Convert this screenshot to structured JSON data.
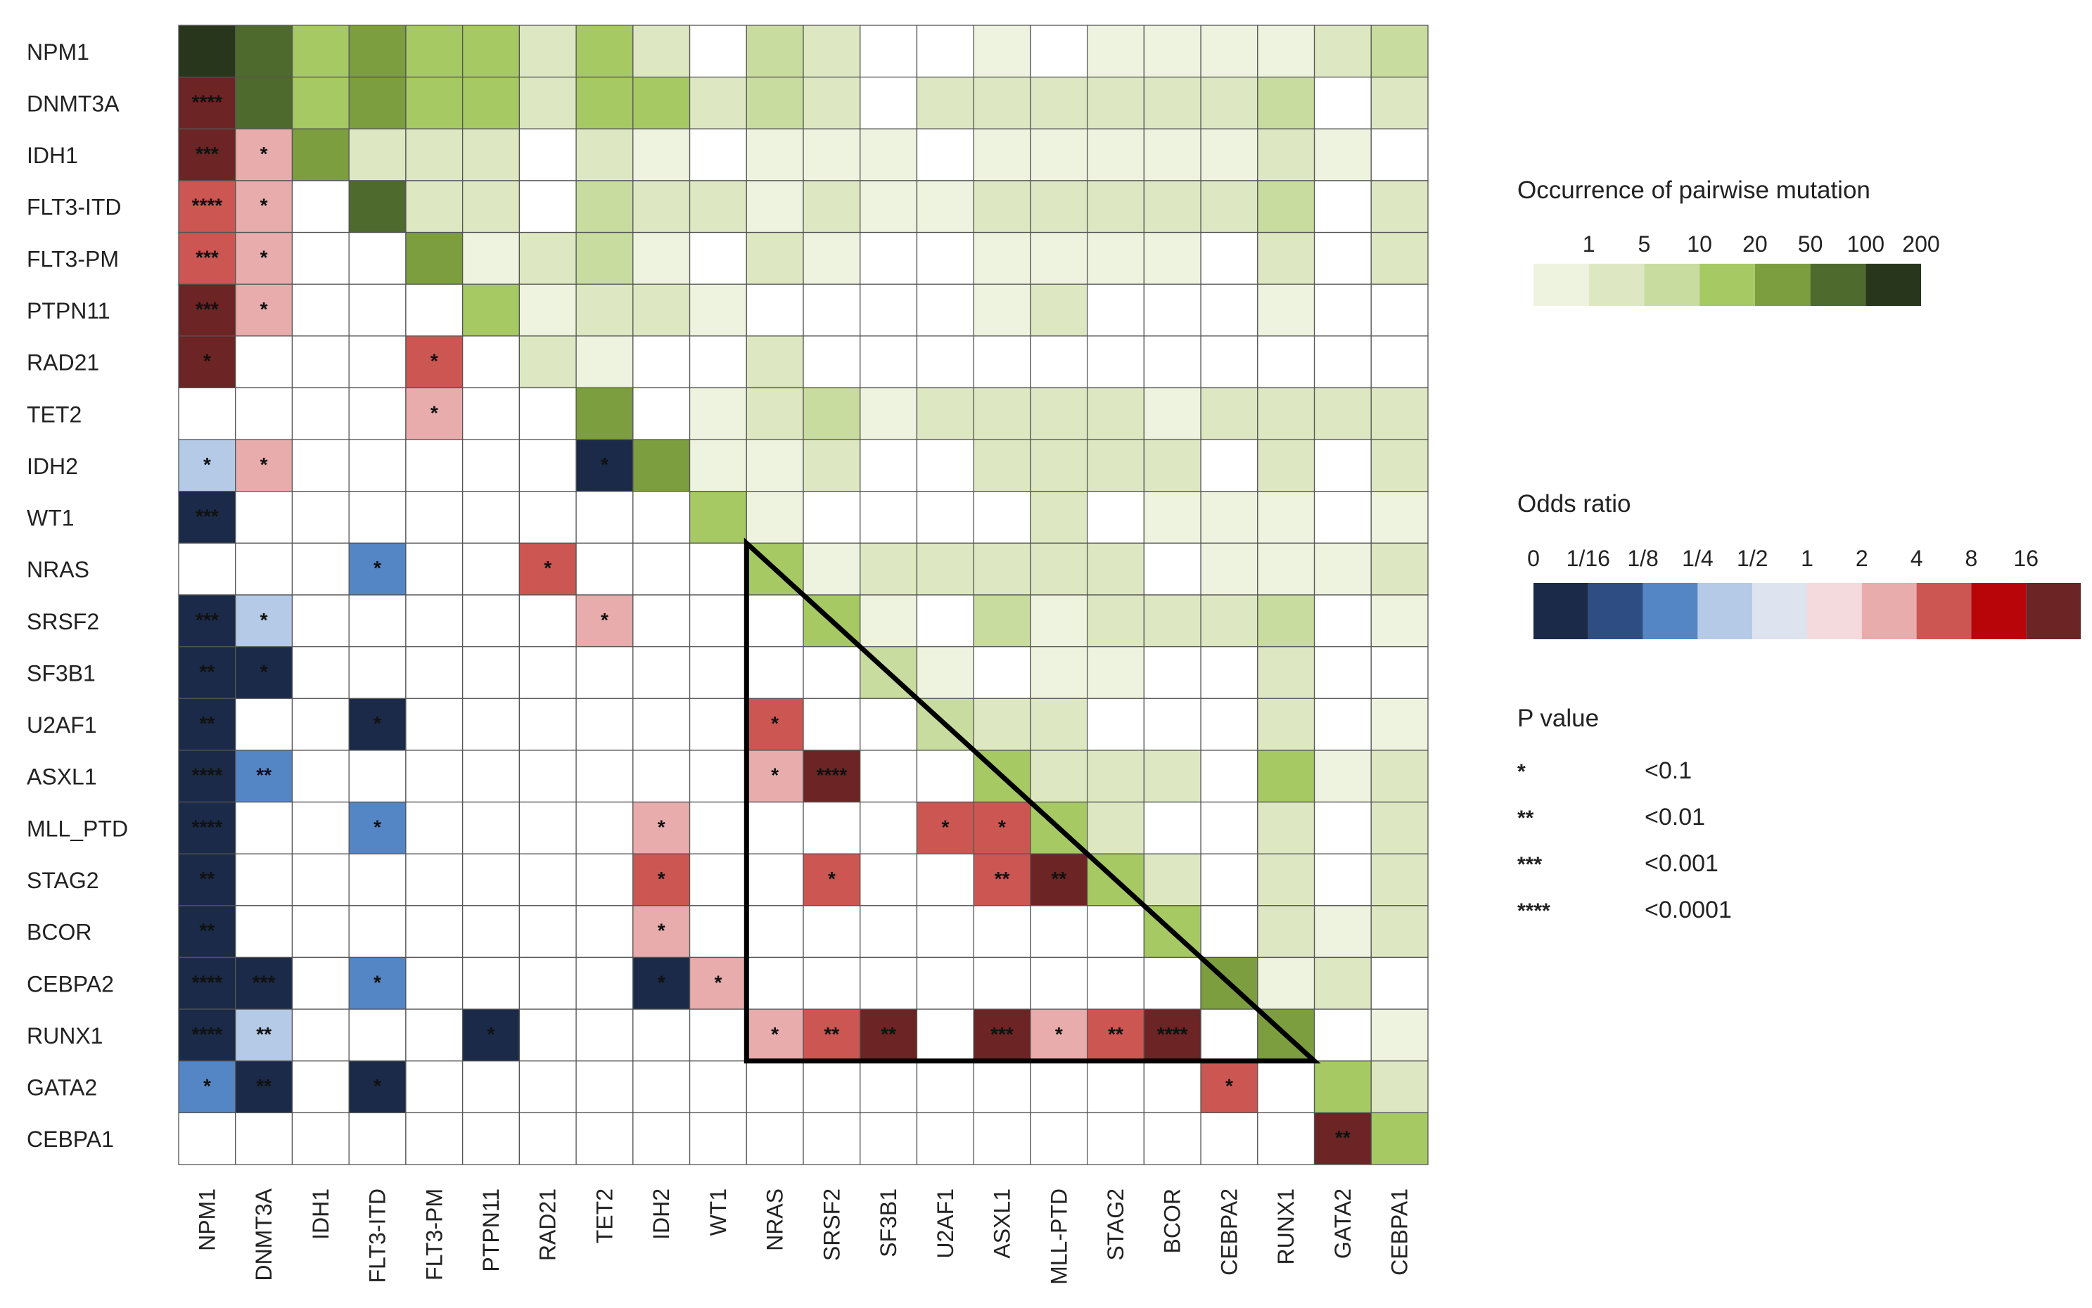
{
  "chart_data": {
    "type": "heatmap",
    "title": "",
    "genes_rows": [
      "NPM1",
      "DNMT3A",
      "IDH1",
      "FLT3-ITD",
      "FLT3-PM",
      "PTPN11",
      "RAD21",
      "TET2",
      "IDH2",
      "WT1",
      "NRAS",
      "SRSF2",
      "SF3B1",
      "U2AF1",
      "ASXL1",
      "MLL_PTD",
      "STAG2",
      "BCOR",
      "CEBPA2",
      "RUNX1",
      "GATA2",
      "CEBPA1"
    ],
    "genes_cols": [
      "NPM1",
      "DNMT3A",
      "IDH1",
      "FLT3-ITD",
      "FLT3-PM",
      "PTPN11",
      "RAD21",
      "TET2",
      "IDH2",
      "WT1",
      "NRAS",
      "SRSF2",
      "SF3B1",
      "U2AF1",
      "ASXL1",
      "MLL-PTD",
      "STAG2",
      "BCOR",
      "CEBPA2",
      "RUNX1",
      "GATA2",
      "CEBPA1"
    ],
    "occurrence_upper": [
      [
        7,
        6,
        4,
        5,
        4,
        4,
        2,
        4,
        2,
        0,
        3,
        2,
        0,
        0,
        1,
        0,
        1,
        1,
        1,
        1,
        2,
        3
      ],
      [
        0,
        6,
        4,
        5,
        4,
        4,
        2,
        4,
        4,
        2,
        3,
        2,
        0,
        2,
        2,
        2,
        2,
        2,
        2,
        3,
        0,
        2
      ],
      [
        0,
        0,
        5,
        2,
        2,
        2,
        0,
        2,
        1,
        0,
        1,
        1,
        1,
        0,
        1,
        1,
        1,
        1,
        1,
        2,
        1,
        0
      ],
      [
        0,
        0,
        0,
        6,
        2,
        2,
        0,
        3,
        2,
        2,
        1,
        2,
        1,
        1,
        2,
        2,
        2,
        2,
        2,
        3,
        0,
        2
      ],
      [
        0,
        0,
        0,
        0,
        5,
        1,
        2,
        3,
        1,
        0,
        2,
        1,
        0,
        0,
        1,
        1,
        1,
        1,
        0,
        2,
        0,
        2
      ],
      [
        0,
        0,
        0,
        0,
        0,
        4,
        1,
        2,
        2,
        1,
        0,
        0,
        0,
        0,
        1,
        2,
        0,
        0,
        0,
        1,
        0,
        0
      ],
      [
        0,
        0,
        0,
        0,
        0,
        0,
        2,
        1,
        0,
        0,
        2,
        0,
        0,
        0,
        0,
        0,
        0,
        0,
        0,
        0,
        0,
        0
      ],
      [
        0,
        0,
        0,
        0,
        0,
        0,
        0,
        5,
        0,
        1,
        2,
        3,
        1,
        2,
        2,
        2,
        2,
        1,
        2,
        2,
        2,
        2
      ],
      [
        0,
        0,
        0,
        0,
        0,
        0,
        0,
        0,
        5,
        1,
        1,
        2,
        0,
        0,
        2,
        2,
        2,
        2,
        0,
        2,
        0,
        2
      ],
      [
        0,
        0,
        0,
        0,
        0,
        0,
        0,
        0,
        0,
        4,
        1,
        0,
        0,
        0,
        0,
        2,
        0,
        1,
        1,
        1,
        0,
        1
      ],
      [
        0,
        0,
        0,
        0,
        0,
        0,
        0,
        0,
        0,
        0,
        4,
        1,
        2,
        2,
        2,
        2,
        2,
        0,
        1,
        1,
        1,
        2
      ],
      [
        0,
        0,
        0,
        0,
        0,
        0,
        0,
        0,
        0,
        0,
        0,
        4,
        1,
        0,
        3,
        1,
        2,
        2,
        2,
        3,
        0,
        1
      ],
      [
        0,
        0,
        0,
        0,
        0,
        0,
        0,
        0,
        0,
        0,
        0,
        0,
        3,
        1,
        0,
        1,
        1,
        0,
        0,
        2,
        0,
        0
      ],
      [
        0,
        0,
        0,
        0,
        0,
        0,
        0,
        0,
        0,
        0,
        0,
        0,
        0,
        3,
        2,
        2,
        0,
        0,
        0,
        2,
        0,
        1
      ],
      [
        0,
        0,
        0,
        0,
        0,
        0,
        0,
        0,
        0,
        0,
        0,
        0,
        0,
        0,
        4,
        2,
        2,
        2,
        0,
        4,
        1,
        2
      ],
      [
        0,
        0,
        0,
        0,
        0,
        0,
        0,
        0,
        0,
        0,
        0,
        0,
        0,
        0,
        0,
        4,
        2,
        0,
        0,
        2,
        0,
        2
      ],
      [
        0,
        0,
        0,
        0,
        0,
        0,
        0,
        0,
        0,
        0,
        0,
        0,
        0,
        0,
        0,
        0,
        4,
        2,
        0,
        2,
        0,
        2
      ],
      [
        0,
        0,
        0,
        0,
        0,
        0,
        0,
        0,
        0,
        0,
        0,
        0,
        0,
        0,
        0,
        0,
        0,
        4,
        0,
        2,
        1,
        2
      ],
      [
        0,
        0,
        0,
        0,
        0,
        0,
        0,
        0,
        0,
        0,
        0,
        0,
        0,
        0,
        0,
        0,
        0,
        0,
        5,
        1,
        2,
        0
      ],
      [
        0,
        0,
        0,
        0,
        0,
        0,
        0,
        0,
        0,
        0,
        0,
        0,
        0,
        0,
        0,
        0,
        0,
        0,
        0,
        5,
        0,
        1
      ],
      [
        0,
        0,
        0,
        0,
        0,
        0,
        0,
        0,
        0,
        0,
        0,
        0,
        0,
        0,
        0,
        0,
        0,
        0,
        0,
        0,
        4,
        2
      ],
      [
        0,
        0,
        0,
        0,
        0,
        0,
        0,
        0,
        0,
        0,
        0,
        0,
        0,
        0,
        0,
        0,
        0,
        0,
        0,
        0,
        0,
        4
      ]
    ],
    "odds_lower": [
      {
        "row": "DNMT3A",
        "col": "NPM1",
        "color": 10,
        "p": "****"
      },
      {
        "row": "IDH1",
        "col": "NPM1",
        "color": 10,
        "p": "***"
      },
      {
        "row": "IDH1",
        "col": "DNMT3A",
        "color": 7,
        "p": "*"
      },
      {
        "row": "FLT3-ITD",
        "col": "NPM1",
        "color": 8,
        "p": "****"
      },
      {
        "row": "FLT3-ITD",
        "col": "DNMT3A",
        "color": 7,
        "p": "*"
      },
      {
        "row": "FLT3-PM",
        "col": "NPM1",
        "color": 8,
        "p": "***"
      },
      {
        "row": "FLT3-PM",
        "col": "DNMT3A",
        "color": 7,
        "p": "*"
      },
      {
        "row": "PTPN11",
        "col": "NPM1",
        "color": 10,
        "p": "***"
      },
      {
        "row": "PTPN11",
        "col": "DNMT3A",
        "color": 7,
        "p": "*"
      },
      {
        "row": "RAD21",
        "col": "NPM1",
        "color": 10,
        "p": "*"
      },
      {
        "row": "RAD21",
        "col": "FLT3-PM",
        "color": 8,
        "p": "*"
      },
      {
        "row": "TET2",
        "col": "FLT3-PM",
        "color": 7,
        "p": "*"
      },
      {
        "row": "IDH2",
        "col": "NPM1",
        "color": 4,
        "p": "*"
      },
      {
        "row": "IDH2",
        "col": "DNMT3A",
        "color": 7,
        "p": "*"
      },
      {
        "row": "IDH2",
        "col": "TET2",
        "color": 1,
        "p": "*"
      },
      {
        "row": "WT1",
        "col": "NPM1",
        "color": 1,
        "p": "***"
      },
      {
        "row": "NRAS",
        "col": "FLT3-ITD",
        "color": 3,
        "p": "*"
      },
      {
        "row": "NRAS",
        "col": "RAD21",
        "color": 8,
        "p": "*"
      },
      {
        "row": "SRSF2",
        "col": "NPM1",
        "color": 1,
        "p": "***"
      },
      {
        "row": "SRSF2",
        "col": "DNMT3A",
        "color": 4,
        "p": "*"
      },
      {
        "row": "SRSF2",
        "col": "TET2",
        "color": 7,
        "p": "*"
      },
      {
        "row": "SF3B1",
        "col": "NPM1",
        "color": 1,
        "p": "**"
      },
      {
        "row": "SF3B1",
        "col": "DNMT3A",
        "color": 1,
        "p": "*"
      },
      {
        "row": "U2AF1",
        "col": "NPM1",
        "color": 1,
        "p": "**"
      },
      {
        "row": "U2AF1",
        "col": "FLT3-ITD",
        "color": 1,
        "p": "*"
      },
      {
        "row": "U2AF1",
        "col": "NRAS",
        "color": 8,
        "p": "*"
      },
      {
        "row": "ASXL1",
        "col": "NPM1",
        "color": 1,
        "p": "****"
      },
      {
        "row": "ASXL1",
        "col": "DNMT3A",
        "color": 3,
        "p": "**"
      },
      {
        "row": "ASXL1",
        "col": "NRAS",
        "color": 7,
        "p": "*"
      },
      {
        "row": "ASXL1",
        "col": "SRSF2",
        "color": 10,
        "p": "****"
      },
      {
        "row": "MLL_PTD",
        "col": "NPM1",
        "color": 1,
        "p": "****"
      },
      {
        "row": "MLL_PTD",
        "col": "FLT3-ITD",
        "color": 3,
        "p": "*"
      },
      {
        "row": "MLL_PTD",
        "col": "IDH2",
        "color": 7,
        "p": "*"
      },
      {
        "row": "MLL_PTD",
        "col": "U2AF1",
        "color": 8,
        "p": "*"
      },
      {
        "row": "MLL_PTD",
        "col": "ASXL1",
        "color": 8,
        "p": "*"
      },
      {
        "row": "STAG2",
        "col": "NPM1",
        "color": 1,
        "p": "**"
      },
      {
        "row": "STAG2",
        "col": "IDH2",
        "color": 8,
        "p": "*"
      },
      {
        "row": "STAG2",
        "col": "SRSF2",
        "color": 8,
        "p": "*"
      },
      {
        "row": "STAG2",
        "col": "ASXL1",
        "color": 8,
        "p": "**"
      },
      {
        "row": "STAG2",
        "col": "MLL-PTD",
        "color": 10,
        "p": "**"
      },
      {
        "row": "BCOR",
        "col": "NPM1",
        "color": 1,
        "p": "**"
      },
      {
        "row": "BCOR",
        "col": "IDH2",
        "color": 7,
        "p": "*"
      },
      {
        "row": "CEBPA2",
        "col": "NPM1",
        "color": 1,
        "p": "****"
      },
      {
        "row": "CEBPA2",
        "col": "DNMT3A",
        "color": 1,
        "p": "***"
      },
      {
        "row": "CEBPA2",
        "col": "FLT3-ITD",
        "color": 3,
        "p": "*"
      },
      {
        "row": "CEBPA2",
        "col": "IDH2",
        "color": 1,
        "p": "*"
      },
      {
        "row": "CEBPA2",
        "col": "WT1",
        "color": 7,
        "p": "*"
      },
      {
        "row": "RUNX1",
        "col": "NPM1",
        "color": 1,
        "p": "****"
      },
      {
        "row": "RUNX1",
        "col": "DNMT3A",
        "color": 4,
        "p": "**"
      },
      {
        "row": "RUNX1",
        "col": "PTPN11",
        "color": 1,
        "p": "*"
      },
      {
        "row": "RUNX1",
        "col": "NRAS",
        "color": 7,
        "p": "*"
      },
      {
        "row": "RUNX1",
        "col": "SRSF2",
        "color": 8,
        "p": "**"
      },
      {
        "row": "RUNX1",
        "col": "SF3B1",
        "color": 10,
        "p": "**"
      },
      {
        "row": "RUNX1",
        "col": "ASXL1",
        "color": 10,
        "p": "***"
      },
      {
        "row": "RUNX1",
        "col": "MLL-PTD",
        "color": 7,
        "p": "*"
      },
      {
        "row": "RUNX1",
        "col": "STAG2",
        "color": 8,
        "p": "**"
      },
      {
        "row": "RUNX1",
        "col": "BCOR",
        "color": 10,
        "p": "****"
      },
      {
        "row": "GATA2",
        "col": "NPM1",
        "color": 3,
        "p": "*"
      },
      {
        "row": "GATA2",
        "col": "DNMT3A",
        "color": 1,
        "p": "**"
      },
      {
        "row": "GATA2",
        "col": "FLT3-ITD",
        "color": 1,
        "p": "*"
      },
      {
        "row": "GATA2",
        "col": "CEBPA2",
        "color": 8,
        "p": "*"
      },
      {
        "row": "CEBPA1",
        "col": "GATA2",
        "color": 10,
        "p": "**"
      }
    ],
    "triangle": {
      "rows": [
        "NRAS",
        "RUNX1"
      ],
      "cols": [
        "NRAS",
        "RUNX1"
      ]
    },
    "legend_occurrence": {
      "title": "Occurrence of pairwise mutation",
      "labels": [
        "1",
        "5",
        "10",
        "20",
        "50",
        "100",
        "200"
      ],
      "colors": [
        "#eef3df",
        "#dde8c2",
        "#c9dca0",
        "#a6c964",
        "#7c9e3f",
        "#4e6a2c",
        "#28361b"
      ]
    },
    "legend_odds": {
      "title": "Odds ratio",
      "labels": [
        "0",
        "1/16",
        "1/8",
        "1/4",
        "1/2",
        "1",
        "2",
        "4",
        "8",
        "16"
      ],
      "colors": [
        "#1a2a48",
        "#2e4d82",
        "#5486c5",
        "#b5cae6",
        "#dde4f0",
        "#f4dadc",
        "#e8acac",
        "#cc5652",
        "#b8050a",
        "#6c2424"
      ]
    },
    "legend_p": {
      "title": "P value",
      "rows": [
        {
          "stars": "*",
          "label": "<0.1"
        },
        {
          "stars": "**",
          "label": "<0.01"
        },
        {
          "stars": "***",
          "label": "<0.001"
        },
        {
          "stars": "****",
          "label": "<0.0001"
        }
      ]
    }
  }
}
